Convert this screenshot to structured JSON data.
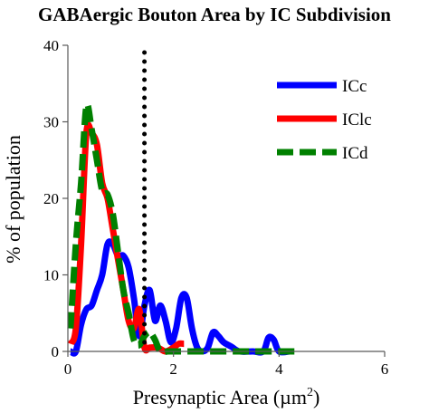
{
  "chart_data": {
    "type": "line",
    "title": "GABAergic Bouton Area by IC Subdivision",
    "xlabel": "Presynaptic Area (µm",
    "xlabel_superscript": "2",
    "xlabel_close": ")",
    "ylabel": "% of population",
    "xlim": [
      0,
      6
    ],
    "ylim": [
      0,
      40
    ],
    "x_ticks": [
      0,
      2,
      4,
      6
    ],
    "y_ticks": [
      0,
      10,
      20,
      30,
      40
    ],
    "grid": false,
    "legend_position": "top-right",
    "reference_line": {
      "x": 1.45,
      "style": "dotted",
      "color": "#000000"
    },
    "series": [
      {
        "name": "ICc",
        "color": "#0000ff",
        "style": "solid",
        "points": [
          [
            0.05,
            0
          ],
          [
            0.15,
            0
          ],
          [
            0.25,
            3.5
          ],
          [
            0.35,
            5.5
          ],
          [
            0.45,
            6
          ],
          [
            0.55,
            8
          ],
          [
            0.65,
            10
          ],
          [
            0.75,
            14
          ],
          [
            0.85,
            14
          ],
          [
            0.95,
            12.5
          ],
          [
            1.05,
            12.5
          ],
          [
            1.15,
            11
          ],
          [
            1.25,
            7
          ],
          [
            1.35,
            2
          ],
          [
            1.45,
            6
          ],
          [
            1.55,
            8
          ],
          [
            1.65,
            4
          ],
          [
            1.75,
            6
          ],
          [
            1.85,
            4
          ],
          [
            1.95,
            1.2
          ],
          [
            2.05,
            3
          ],
          [
            2.15,
            7
          ],
          [
            2.25,
            7
          ],
          [
            2.35,
            3
          ],
          [
            2.45,
            0.5
          ],
          [
            2.55,
            0
          ],
          [
            2.65,
            0.5
          ],
          [
            2.75,
            2.5
          ],
          [
            2.85,
            2
          ],
          [
            2.95,
            1.2
          ],
          [
            3.1,
            0.6
          ],
          [
            3.25,
            0
          ],
          [
            3.5,
            0
          ],
          [
            3.7,
            0
          ],
          [
            3.8,
            1.8
          ],
          [
            3.9,
            1.5
          ],
          [
            4.0,
            0
          ],
          [
            4.2,
            0
          ]
        ]
      },
      {
        "name": "IClc",
        "color": "#ff0000",
        "style": "solid",
        "points": [
          [
            0.05,
            1
          ],
          [
            0.15,
            3
          ],
          [
            0.25,
            14
          ],
          [
            0.35,
            28.5
          ],
          [
            0.45,
            28.5
          ],
          [
            0.55,
            27
          ],
          [
            0.65,
            22
          ],
          [
            0.75,
            20
          ],
          [
            0.85,
            16
          ],
          [
            0.95,
            12
          ],
          [
            1.05,
            8
          ],
          [
            1.15,
            4
          ],
          [
            1.25,
            3
          ],
          [
            1.35,
            5.5
          ],
          [
            1.45,
            0.5
          ],
          [
            1.55,
            0.5
          ],
          [
            1.7,
            0.5
          ],
          [
            1.85,
            0
          ],
          [
            2.0,
            0.5
          ],
          [
            2.1,
            1
          ],
          [
            2.2,
            1
          ]
        ]
      },
      {
        "name": "ICd",
        "color": "#008000",
        "style": "dashed",
        "points": [
          [
            0.05,
            3
          ],
          [
            0.15,
            14
          ],
          [
            0.25,
            22
          ],
          [
            0.35,
            32
          ],
          [
            0.45,
            29
          ],
          [
            0.55,
            25
          ],
          [
            0.65,
            21
          ],
          [
            0.75,
            20.5
          ],
          [
            0.85,
            18
          ],
          [
            0.95,
            13
          ],
          [
            1.05,
            8
          ],
          [
            1.15,
            5
          ],
          [
            1.25,
            1.5
          ],
          [
            1.35,
            0.8
          ],
          [
            1.45,
            2
          ],
          [
            1.55,
            2.5
          ],
          [
            1.65,
            1.5
          ],
          [
            1.75,
            0
          ],
          [
            1.9,
            0
          ],
          [
            2.1,
            0
          ],
          [
            2.5,
            0
          ],
          [
            3.0,
            0
          ],
          [
            3.5,
            0
          ],
          [
            4.0,
            0
          ],
          [
            4.3,
            0
          ]
        ]
      }
    ]
  }
}
